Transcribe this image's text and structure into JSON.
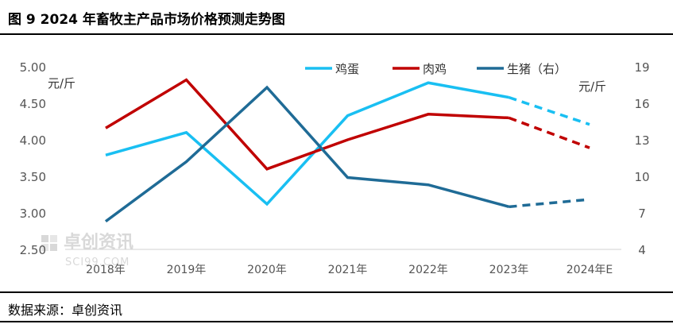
{
  "title": "图 9 2024 年畜牧主产品市场价格预测走势图",
  "source": "数据来源：卓创资讯",
  "watermark": {
    "cn": "卓创资讯",
    "en": "SCI99.COM"
  },
  "colors": {
    "egg": "#19bff2",
    "chicken": "#c00000",
    "hog": "#1f6b96",
    "axis": "#555555"
  },
  "chart_data": {
    "type": "line",
    "categories": [
      "2018年",
      "2019年",
      "2020年",
      "2021年",
      "2022年",
      "2023年",
      "2024年E"
    ],
    "left_axis": {
      "ylim": [
        2.5,
        5.0
      ],
      "ticks": [
        "2.50",
        "3.00",
        "3.50",
        "4.00",
        "4.50",
        "5.00"
      ],
      "unit": "元/斤"
    },
    "right_axis": {
      "ylim": [
        4,
        19
      ],
      "ticks": [
        "4",
        "7",
        "10",
        "13",
        "16",
        "19"
      ],
      "unit": "元/斤"
    },
    "forecast_from_index": 5,
    "series": [
      {
        "name": "鸡蛋",
        "axis": "left",
        "color": "#19bff2",
        "values": [
          3.79,
          4.1,
          3.12,
          4.33,
          4.78,
          4.58,
          4.21
        ]
      },
      {
        "name": "肉鸡",
        "axis": "left",
        "color": "#c00000",
        "values": [
          4.16,
          4.82,
          3.6,
          4.0,
          4.35,
          4.3,
          3.89
        ]
      },
      {
        "name": "生猪（右）",
        "axis": "right",
        "color": "#1f6b96",
        "values": [
          6.3,
          11.2,
          17.3,
          9.9,
          9.3,
          7.5,
          8.1
        ]
      }
    ]
  }
}
